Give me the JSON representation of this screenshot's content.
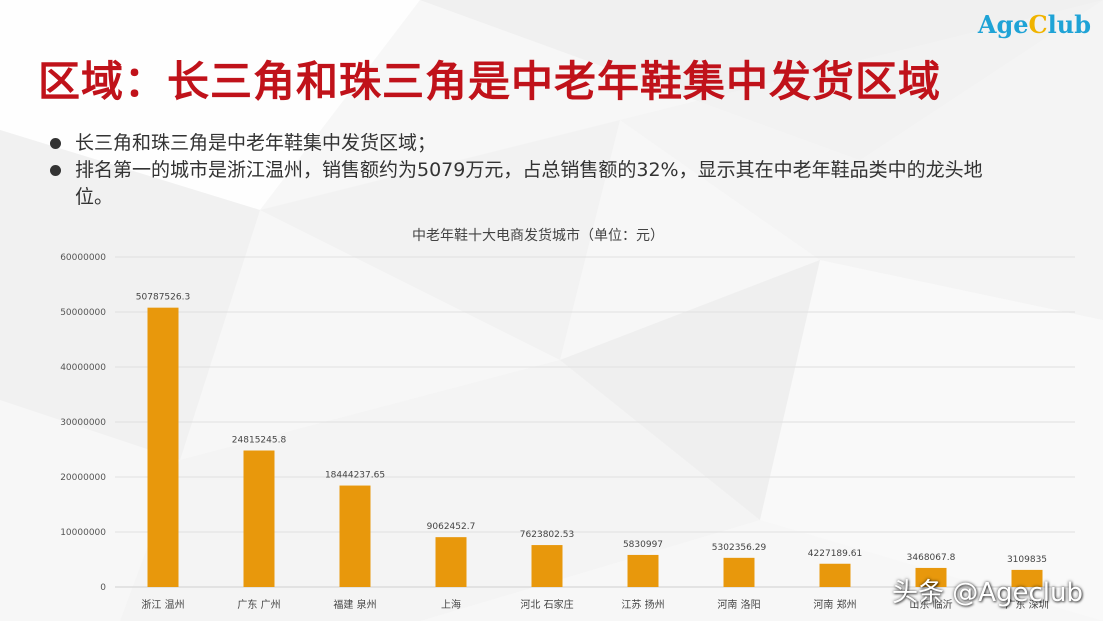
{
  "logo": {
    "part1": "Age",
    "part2": "C",
    "part3": "lub"
  },
  "title": "区域：长三角和珠三角是中老年鞋集中发货区域",
  "bullets": [
    "长三角和珠三角是中老年鞋集中发货区域；",
    "排名第一的城市是浙江温州，销售额约为5079万元，占总销售额的32%，显示其在中老年鞋品类中的龙头地位。"
  ],
  "watermark": "头条 @Ageclub",
  "colors": {
    "title": "#c0121a",
    "bar": "#e8980c",
    "logo_blue": "#1fa3d6",
    "logo_yellow": "#f0b400"
  },
  "chart_data": {
    "type": "bar",
    "title": "中老年鞋十大电商发货城市（单位：元）",
    "categories": [
      "浙江 温州",
      "广东 广州",
      "福建 泉州",
      "上海",
      "河北 石家庄",
      "江苏 扬州",
      "河南 洛阳",
      "河南 郑州",
      "山东 临沂",
      "广东 深圳"
    ],
    "values": [
      50787526.3,
      24815245.8,
      18444237.65,
      9062452.7,
      7623802.53,
      5830997,
      5302356.29,
      4227189.61,
      3468067.8,
      3109835
    ],
    "value_labels": [
      "50787526.3",
      "24815245.8",
      "18444237.65",
      "9062452.7",
      "7623802.53",
      "5830997",
      "5302356.29",
      "4227189.61",
      "3468067.8",
      "3109835"
    ],
    "yticks": [
      "0",
      "10000000",
      "20000000",
      "30000000",
      "40000000",
      "50000000",
      "60000000"
    ],
    "ylim": [
      0,
      60000000
    ],
    "grid": true,
    "legend": "none"
  }
}
